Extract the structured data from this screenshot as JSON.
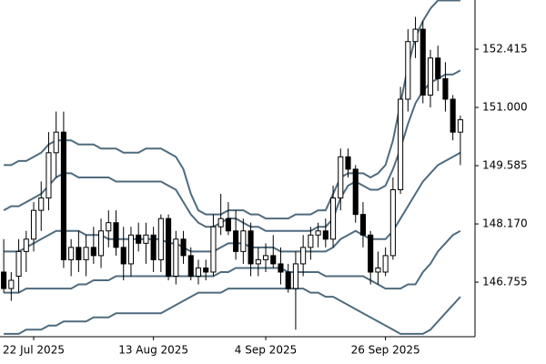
{
  "chart_data": {
    "type": "candlestick",
    "categories": [
      null,
      null,
      null,
      null,
      "22 Jul 2025",
      null,
      null,
      null,
      null,
      null,
      null,
      null,
      null,
      null,
      null,
      null,
      null,
      null,
      null,
      null,
      "13 Aug 2025",
      null,
      null,
      null,
      null,
      null,
      null,
      null,
      null,
      null,
      null,
      null,
      null,
      null,
      null,
      "4 Sep 2025",
      null,
      null,
      null,
      null,
      null,
      null,
      null,
      null,
      null,
      null,
      null,
      null,
      null,
      null,
      null,
      "26 Sep 2025",
      null,
      null,
      null,
      null,
      null,
      null,
      null,
      null,
      null,
      null
    ],
    "open": [
      147.0,
      146.6,
      146.9,
      147.5,
      147.8,
      148.5,
      148.8,
      149.9,
      150.4,
      147.3,
      147.6,
      147.3,
      147.6,
      147.4,
      148.0,
      148.2,
      147.6,
      147.2,
      147.9,
      147.7,
      147.9,
      147.3,
      148.3,
      146.9,
      147.8,
      147.4,
      146.9,
      147.1,
      147.0,
      148.1,
      148.3,
      148.0,
      147.5,
      148.0,
      147.2,
      147.3,
      147.4,
      147.2,
      147.0,
      146.6,
      147.2,
      147.6,
      147.9,
      148.0,
      147.8,
      148.8,
      149.8,
      149.5,
      148.4,
      147.9,
      147.0,
      147.0,
      147.4,
      149.0,
      151.2,
      152.6,
      152.9,
      151.3,
      152.2,
      151.7,
      151.2,
      150.4
    ],
    "high": [
      147.8,
      147.0,
      147.8,
      148.0,
      148.7,
      149.2,
      150.4,
      150.9,
      150.9,
      147.8,
      148.0,
      147.9,
      148.1,
      148.3,
      148.5,
      148.5,
      148.1,
      148.1,
      148.2,
      148.2,
      148.1,
      148.4,
      148.4,
      148.0,
      148.0,
      147.6,
      147.3,
      147.3,
      148.4,
      148.9,
      148.7,
      148.5,
      148.3,
      148.2,
      147.6,
      147.7,
      147.9,
      147.6,
      147.2,
      147.5,
      147.9,
      148.1,
      148.2,
      148.3,
      149.1,
      150.0,
      150.0,
      149.6,
      148.7,
      148.0,
      147.5,
      147.6,
      149.3,
      151.5,
      152.9,
      153.2,
      153.1,
      152.4,
      152.5,
      152.1,
      151.3,
      150.8
    ],
    "low": [
      146.5,
      146.3,
      146.5,
      147.0,
      147.5,
      148.0,
      148.5,
      149.3,
      147.1,
      146.9,
      147.0,
      146.9,
      147.2,
      147.1,
      147.6,
      147.4,
      146.8,
      146.9,
      147.5,
      147.2,
      147.0,
      147.0,
      146.8,
      146.7,
      147.2,
      146.8,
      146.7,
      146.8,
      146.9,
      147.9,
      147.9,
      147.3,
      147.2,
      146.9,
      146.9,
      147.0,
      147.1,
      146.7,
      146.5,
      145.6,
      146.9,
      147.3,
      147.6,
      147.6,
      147.6,
      148.5,
      149.3,
      148.2,
      147.6,
      146.7,
      146.7,
      146.9,
      147.3,
      148.9,
      150.9,
      152.2,
      151.1,
      151.0,
      151.4,
      150.9,
      150.2,
      149.6
    ],
    "close": [
      146.6,
      146.8,
      147.5,
      147.8,
      148.5,
      148.8,
      149.9,
      150.4,
      147.3,
      147.6,
      147.3,
      147.6,
      147.4,
      148.0,
      148.2,
      147.6,
      147.2,
      147.9,
      147.7,
      147.9,
      147.3,
      148.3,
      146.9,
      147.8,
      147.4,
      146.9,
      147.1,
      147.0,
      148.1,
      148.3,
      148.0,
      147.5,
      148.0,
      147.2,
      147.3,
      147.4,
      147.2,
      147.0,
      146.6,
      147.2,
      147.6,
      147.9,
      148.0,
      147.8,
      148.8,
      149.8,
      149.5,
      148.4,
      147.9,
      147.0,
      147.1,
      147.4,
      149.0,
      151.2,
      152.6,
      152.9,
      151.3,
      152.2,
      151.7,
      151.2,
      150.4,
      150.7
    ],
    "bull_color": "#ffffff",
    "bear_color": "#000000",
    "outline_color": "#000000",
    "bands": [
      {
        "color": "#4f6b7f",
        "values": [
          149.6,
          149.6,
          149.7,
          149.7,
          149.8,
          149.9,
          150.1,
          150.2,
          150.2,
          150.2,
          150.1,
          150.1,
          150.1,
          150.0,
          150.0,
          150.0,
          149.9,
          149.9,
          149.9,
          150.0,
          150.0,
          150.0,
          149.9,
          149.8,
          149.5,
          148.9,
          148.5,
          148.4,
          148.4,
          148.4,
          148.5,
          148.5,
          148.5,
          148.4,
          148.4,
          148.3,
          148.3,
          148.3,
          148.3,
          148.4,
          148.4,
          148.4,
          148.5,
          148.5,
          148.9,
          149.3,
          149.4,
          149.4,
          149.4,
          149.3,
          149.4,
          149.6,
          150.2,
          151.1,
          152.0,
          152.7,
          153.1,
          153.4,
          153.6,
          153.6,
          153.6,
          153.6
        ]
      },
      {
        "color": "#4f6b7f",
        "values": [
          148.5,
          148.6,
          148.6,
          148.7,
          148.8,
          148.9,
          149.1,
          149.3,
          149.4,
          149.4,
          149.3,
          149.3,
          149.3,
          149.3,
          149.3,
          149.2,
          149.2,
          149.2,
          149.2,
          149.2,
          149.2,
          149.2,
          149.1,
          149.0,
          148.7,
          148.4,
          148.2,
          148.1,
          148.1,
          148.2,
          148.3,
          148.3,
          148.2,
          148.1,
          148.1,
          148.0,
          148.0,
          148.0,
          148.0,
          148.0,
          148.0,
          148.0,
          148.1,
          148.1,
          148.3,
          148.8,
          149.1,
          149.2,
          149.1,
          149.0,
          149.0,
          149.1,
          149.5,
          150.0,
          150.6,
          151.1,
          151.4,
          151.6,
          151.7,
          151.8,
          151.8,
          151.9
        ]
      },
      {
        "color": "#4f6b7f",
        "values": [
          147.5,
          147.5,
          147.5,
          147.6,
          147.7,
          147.8,
          147.9,
          148.0,
          148.0,
          148.0,
          148.0,
          147.9,
          147.9,
          147.9,
          147.8,
          147.8,
          147.8,
          147.8,
          147.8,
          147.8,
          147.8,
          147.8,
          147.7,
          147.7,
          147.6,
          147.5,
          147.5,
          147.5,
          147.5,
          147.6,
          147.7,
          147.7,
          147.7,
          147.6,
          147.6,
          147.6,
          147.6,
          147.5,
          147.5,
          147.5,
          147.5,
          147.5,
          147.5,
          147.5,
          147.6,
          147.8,
          147.9,
          148.0,
          147.9,
          147.8,
          147.8,
          147.8,
          148.0,
          148.3,
          148.6,
          148.9,
          149.2,
          149.4,
          149.6,
          149.7,
          149.8,
          149.9
        ]
      },
      {
        "color": "#4f6b7f",
        "values": [
          146.5,
          146.5,
          146.5,
          146.6,
          146.6,
          146.6,
          146.6,
          146.6,
          146.6,
          146.6,
          146.7,
          146.7,
          146.8,
          146.8,
          146.8,
          146.9,
          146.9,
          146.9,
          146.9,
          146.9,
          146.9,
          146.9,
          146.9,
          146.9,
          146.9,
          146.9,
          146.9,
          146.9,
          146.9,
          147.0,
          147.0,
          147.1,
          147.1,
          147.1,
          147.1,
          147.1,
          147.1,
          147.1,
          147.0,
          147.0,
          147.0,
          147.0,
          147.0,
          146.9,
          146.9,
          146.9,
          146.9,
          146.9,
          146.9,
          146.8,
          146.7,
          146.6,
          146.6,
          146.6,
          146.7,
          146.7,
          147.0,
          147.2,
          147.5,
          147.7,
          147.9,
          148.0
        ]
      },
      {
        "color": "#4f6b7f",
        "values": [
          145.5,
          145.5,
          145.5,
          145.6,
          145.6,
          145.6,
          145.7,
          145.7,
          145.8,
          145.8,
          145.8,
          145.8,
          145.9,
          145.9,
          145.9,
          146.0,
          146.0,
          146.0,
          146.0,
          146.0,
          146.0,
          146.0,
          146.1,
          146.2,
          146.3,
          146.4,
          146.5,
          146.5,
          146.5,
          146.5,
          146.6,
          146.6,
          146.6,
          146.6,
          146.6,
          146.6,
          146.6,
          146.6,
          146.6,
          146.6,
          146.6,
          146.5,
          146.5,
          146.4,
          146.4,
          146.3,
          146.2,
          146.1,
          146.0,
          145.9,
          145.8,
          145.7,
          145.6,
          145.5,
          145.5,
          145.5,
          145.5,
          145.6,
          145.8,
          146.0,
          146.2,
          146.4
        ]
      }
    ],
    "ylim": [
      145.43,
      153.61
    ],
    "yticks": [
      146.755,
      {
        "value": 148.17,
        "label": "148.170"
      },
      149.585,
      {
        "value": 151,
        "label": "151.000"
      },
      152.415
    ]
  }
}
